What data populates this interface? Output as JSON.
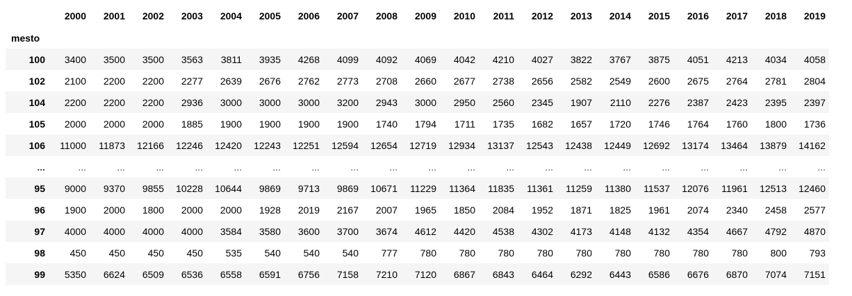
{
  "table": {
    "index_name": "mesto",
    "columns": [
      "2000",
      "2001",
      "2002",
      "2003",
      "2004",
      "2005",
      "2006",
      "2007",
      "2008",
      "2009",
      "2010",
      "2011",
      "2012",
      "2013",
      "2014",
      "2015",
      "2016",
      "2017",
      "2018",
      "2019"
    ],
    "rows": [
      {
        "index": "100",
        "values": [
          "3400",
          "3500",
          "3500",
          "3563",
          "3811",
          "3935",
          "4268",
          "4099",
          "4092",
          "4069",
          "4042",
          "4210",
          "4027",
          "3822",
          "3767",
          "3875",
          "4051",
          "4213",
          "4034",
          "4058"
        ]
      },
      {
        "index": "102",
        "values": [
          "2100",
          "2200",
          "2200",
          "2277",
          "2639",
          "2676",
          "2762",
          "2773",
          "2708",
          "2660",
          "2677",
          "2738",
          "2656",
          "2582",
          "2549",
          "2600",
          "2675",
          "2764",
          "2781",
          "2804"
        ]
      },
      {
        "index": "104",
        "values": [
          "2200",
          "2200",
          "2200",
          "2936",
          "3000",
          "3000",
          "3000",
          "3200",
          "2943",
          "3000",
          "2950",
          "2560",
          "2345",
          "1907",
          "2110",
          "2276",
          "2387",
          "2423",
          "2395",
          "2397"
        ]
      },
      {
        "index": "105",
        "values": [
          "2000",
          "2000",
          "2000",
          "1885",
          "1900",
          "1900",
          "1900",
          "1900",
          "1740",
          "1794",
          "1711",
          "1735",
          "1682",
          "1657",
          "1720",
          "1746",
          "1764",
          "1760",
          "1800",
          "1736"
        ]
      },
      {
        "index": "106",
        "values": [
          "11000",
          "11873",
          "12166",
          "12246",
          "12420",
          "12243",
          "12251",
          "12594",
          "12654",
          "12719",
          "12934",
          "13137",
          "12543",
          "12438",
          "12449",
          "12692",
          "13174",
          "13464",
          "13879",
          "14162"
        ]
      },
      {
        "index": "...",
        "values": [
          "...",
          "...",
          "...",
          "...",
          "...",
          "...",
          "...",
          "...",
          "...",
          "...",
          "...",
          "...",
          "...",
          "...",
          "...",
          "...",
          "...",
          "...",
          "...",
          "..."
        ]
      },
      {
        "index": "95",
        "values": [
          "9000",
          "9370",
          "9855",
          "10228",
          "10644",
          "9869",
          "9713",
          "9869",
          "10671",
          "11229",
          "11364",
          "11835",
          "11361",
          "11259",
          "11380",
          "11537",
          "12076",
          "11961",
          "12513",
          "12460"
        ]
      },
      {
        "index": "96",
        "values": [
          "1900",
          "2000",
          "1800",
          "2000",
          "2000",
          "1928",
          "2019",
          "2167",
          "2007",
          "1965",
          "1850",
          "2084",
          "1952",
          "1871",
          "1825",
          "1961",
          "2074",
          "2340",
          "2458",
          "2577"
        ]
      },
      {
        "index": "97",
        "values": [
          "4000",
          "4000",
          "4000",
          "4000",
          "3584",
          "3580",
          "3600",
          "3700",
          "3674",
          "4612",
          "4420",
          "4538",
          "4302",
          "4173",
          "4148",
          "4132",
          "4354",
          "4667",
          "4792",
          "4870"
        ]
      },
      {
        "index": "98",
        "values": [
          "450",
          "450",
          "450",
          "450",
          "535",
          "540",
          "540",
          "540",
          "777",
          "780",
          "780",
          "780",
          "780",
          "780",
          "780",
          "780",
          "780",
          "780",
          "800",
          "793"
        ]
      },
      {
        "index": "99",
        "values": [
          "5350",
          "6624",
          "6509",
          "6536",
          "6558",
          "6591",
          "6756",
          "7158",
          "7210",
          "7120",
          "6867",
          "6843",
          "6464",
          "6292",
          "6443",
          "6586",
          "6676",
          "6870",
          "7074",
          "7151"
        ]
      }
    ]
  }
}
